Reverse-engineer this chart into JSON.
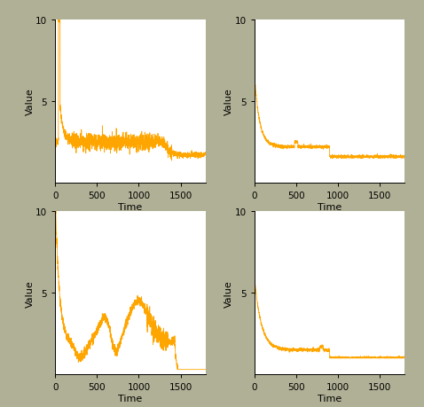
{
  "background_color": "#b0b096",
  "line_color": "#FFA500",
  "line_width": 0.6,
  "xlim": [
    0,
    1800
  ],
  "ylim": [
    0,
    10
  ],
  "xticks": [
    0,
    500,
    1000,
    1500
  ],
  "yticks": [
    5,
    10
  ],
  "xlabel": "Time",
  "ylabel": "Value",
  "subplot_bg": "#ffffff",
  "n_steps": 1800
}
